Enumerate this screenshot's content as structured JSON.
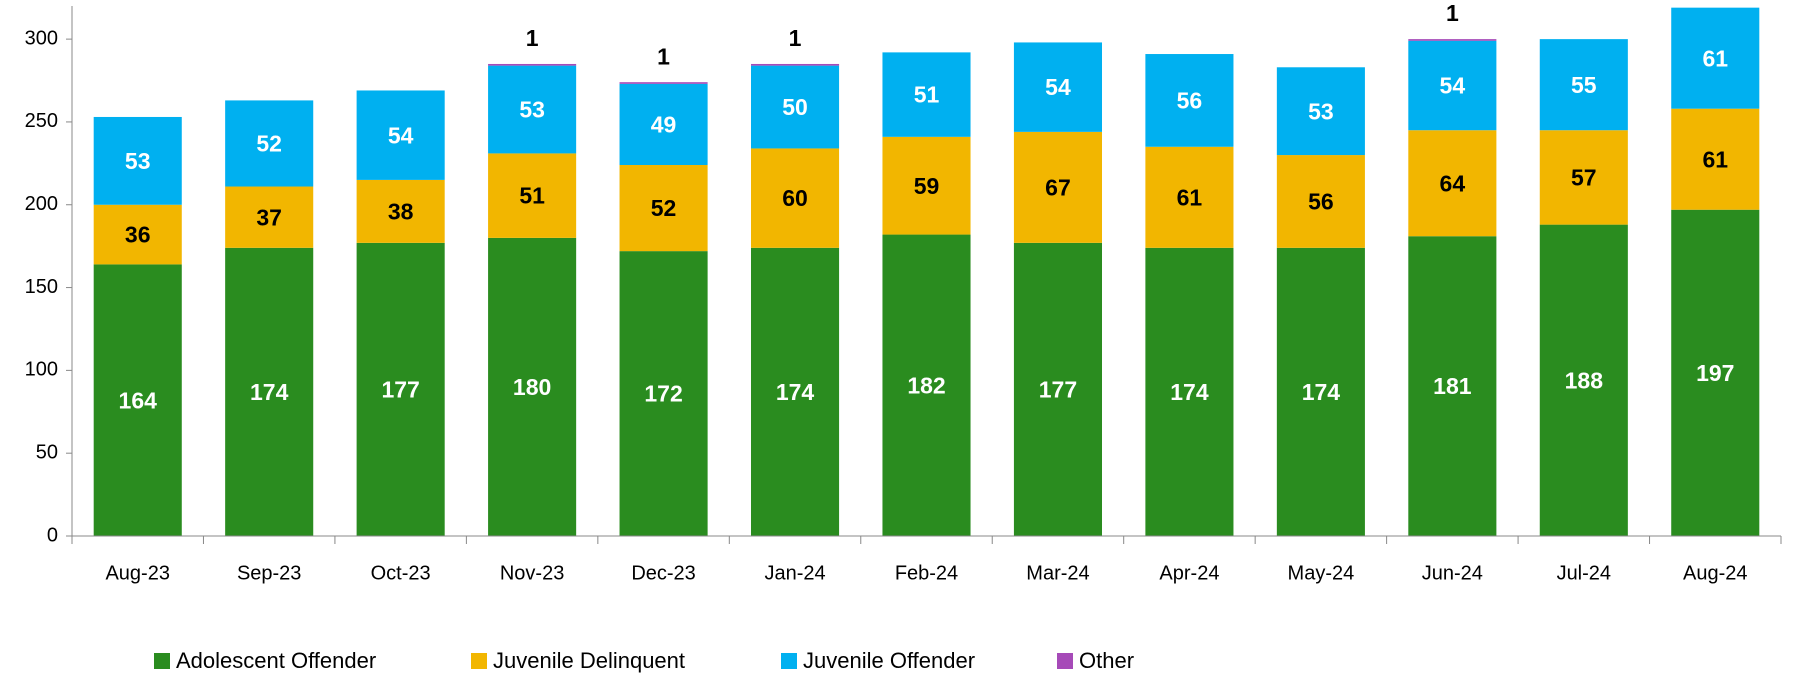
{
  "chart_data": {
    "type": "stacked_bar",
    "categories": [
      "Aug-23",
      "Sep-23",
      "Oct-23",
      "Nov-23",
      "Dec-23",
      "Jan-24",
      "Feb-24",
      "Mar-24",
      "Apr-24",
      "May-24",
      "Jun-24",
      "Jul-24",
      "Aug-24"
    ],
    "series": [
      {
        "name": "Adolescent Offender",
        "color": "#2a8c1f",
        "label_color": "#ffffff",
        "values": [
          164,
          174,
          177,
          180,
          172,
          174,
          182,
          177,
          174,
          174,
          181,
          188,
          197
        ]
      },
      {
        "name": "Juvenile Delinquent",
        "color": "#f2b600",
        "label_color": "#000000",
        "values": [
          36,
          37,
          38,
          51,
          52,
          60,
          59,
          67,
          61,
          56,
          64,
          57,
          61
        ]
      },
      {
        "name": "Juvenile Offender",
        "color": "#00b0f0",
        "label_color": "#ffffff",
        "values": [
          53,
          52,
          54,
          53,
          49,
          50,
          51,
          54,
          56,
          53,
          54,
          55,
          61
        ]
      },
      {
        "name": "Other",
        "color": "#a64ab8",
        "label_color": "#000000",
        "values": [
          null,
          null,
          null,
          1,
          1,
          1,
          null,
          null,
          null,
          null,
          1,
          null,
          null
        ]
      }
    ],
    "ylim": [
      0,
      320
    ],
    "yticks": [
      0,
      50,
      100,
      150,
      200,
      250,
      300
    ],
    "grid": false,
    "legend": "bottom"
  }
}
